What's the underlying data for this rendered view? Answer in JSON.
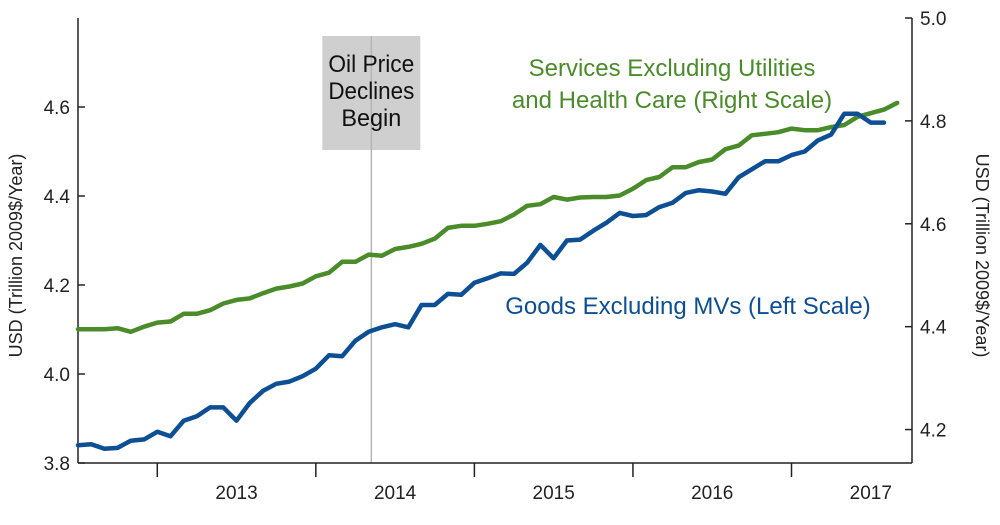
{
  "chart_data": {
    "type": "line",
    "title": "",
    "x_categories": [
      "2013",
      "2014",
      "2015",
      "2016",
      "2017"
    ],
    "left_axis": {
      "label": "USD (Trillion 2009$/Year)",
      "range": [
        3.8,
        4.8
      ],
      "ticks": [
        "3.8",
        "4.0",
        "4.2",
        "4.4",
        "4.6"
      ],
      "tick_values": [
        3.8,
        4.0,
        4.2,
        4.4,
        4.6
      ]
    },
    "right_axis": {
      "label": "USD (Trillion 2009$/Year)",
      "range": [
        4.13,
        5.0
      ],
      "ticks": [
        "4.2",
        "4.4",
        "4.6",
        "4.8",
        "5.0"
      ],
      "tick_values": [
        4.2,
        4.4,
        4.6,
        4.8,
        5.0
      ]
    },
    "annotation": {
      "lines": [
        "Oil Price",
        "Declines",
        "Begin"
      ],
      "x": 2014.35
    },
    "series": [
      {
        "name": "Services Excluding Utilities and Health Care (Right Scale)",
        "label_lines": [
          "Services Excluding Utilities",
          "and Health Care (Right Scale)"
        ],
        "axis": "right",
        "color": "#4a8c2a",
        "x_start": 2012.5,
        "x_step": 0.08333,
        "values": [
          4.395,
          4.395,
          4.395,
          4.397,
          4.39,
          4.4,
          4.408,
          4.41,
          4.425,
          4.425,
          4.432,
          4.445,
          4.452,
          4.455,
          4.465,
          4.474,
          4.478,
          4.484,
          4.498,
          4.505,
          4.526,
          4.526,
          4.54,
          4.538,
          4.551,
          4.555,
          4.561,
          4.571,
          4.592,
          4.596,
          4.596,
          4.6,
          4.605,
          4.618,
          4.635,
          4.638,
          4.652,
          4.647,
          4.651,
          4.652,
          4.652,
          4.655,
          4.668,
          4.685,
          4.691,
          4.71,
          4.71,
          4.72,
          4.725,
          4.745,
          4.752,
          4.772,
          4.775,
          4.778,
          4.785,
          4.782,
          4.782,
          4.788,
          4.792,
          4.808,
          4.815,
          4.822,
          4.835
        ]
      },
      {
        "name": "Goods Excluding MVs (Left Scale)",
        "label_lines": [
          "Goods Excluding MVs (Left Scale)"
        ],
        "axis": "left",
        "color": "#0d4f94",
        "x_start": 2012.5,
        "x_step": 0.08333,
        "values": [
          3.84,
          3.842,
          3.832,
          3.834,
          3.85,
          3.853,
          3.87,
          3.86,
          3.895,
          3.905,
          3.925,
          3.925,
          3.895,
          3.935,
          3.962,
          3.978,
          3.983,
          3.995,
          4.012,
          4.042,
          4.04,
          4.075,
          4.095,
          4.105,
          4.112,
          4.105,
          4.155,
          4.155,
          4.18,
          4.178,
          4.205,
          4.215,
          4.226,
          4.225,
          4.25,
          4.29,
          4.26,
          4.3,
          4.302,
          4.322,
          4.34,
          4.362,
          4.355,
          4.357,
          4.375,
          4.385,
          4.407,
          4.413,
          4.41,
          4.405,
          4.442,
          4.46,
          4.478,
          4.478,
          4.492,
          4.5,
          4.525,
          4.538,
          4.585,
          4.585,
          4.565,
          4.565
        ]
      }
    ]
  }
}
